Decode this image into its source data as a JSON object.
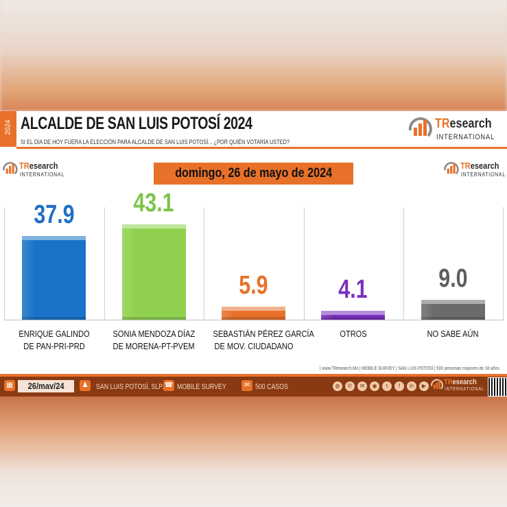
{
  "header": {
    "side_year": "2024",
    "title": "ALCALDE DE SAN LUIS POTOSÍ 2024",
    "subtitle": "SI EL DÍA DE HOY FUERA LA ELECCIÓN PARA ALCALDE DE SAN LUIS POTOSÍ... ¿POR QUIÉN VOTARÍA USTED?"
  },
  "brand": {
    "tr": "TR",
    "research": "esearch",
    "international": "INTERNATIONAL",
    "accent": "#e8712a"
  },
  "date_label": "domingo, 26 de mayo de 2024",
  "chart_data": {
    "type": "bar",
    "categories": [
      [
        "ENRIQUE GALINDO",
        "DE PAN-PRI-PRD"
      ],
      [
        "SONIA MENDOZA DÍAZ",
        "DE MORENA-PT-PVEM"
      ],
      [
        "SEBASTIÁN PÉREZ GARCÍA",
        "DE MOV. CIUDADANO"
      ],
      [
        "OTROS"
      ],
      [
        "NO SABE AÚN"
      ]
    ],
    "values": [
      37.9,
      43.1,
      5.9,
      4.1,
      9.0
    ],
    "value_labels": [
      "37.9",
      "43.1",
      "5.9",
      "4.1",
      "9.0"
    ],
    "colors": [
      "#1a73c8",
      "#8fd14f",
      "#e8712a",
      "#7b2fbe",
      "#6b6b6b"
    ],
    "value_colors": [
      "#1f6fc4",
      "#7cc44a",
      "#e8712a",
      "#7b2fbe",
      "#5e5e5e"
    ],
    "ylim": [
      0,
      45
    ]
  },
  "source_note": "| www.TResearch.Mx | MOBILE SURVEY | SAN LUIS POTOSÍ | 500 personas mayores de 18 años",
  "footer": {
    "date": "26/mav/24",
    "place": "SAN LUIS POTOSÍ, SLP.",
    "method": "MOBILE SURVEY",
    "cases": "500 CASOS"
  }
}
